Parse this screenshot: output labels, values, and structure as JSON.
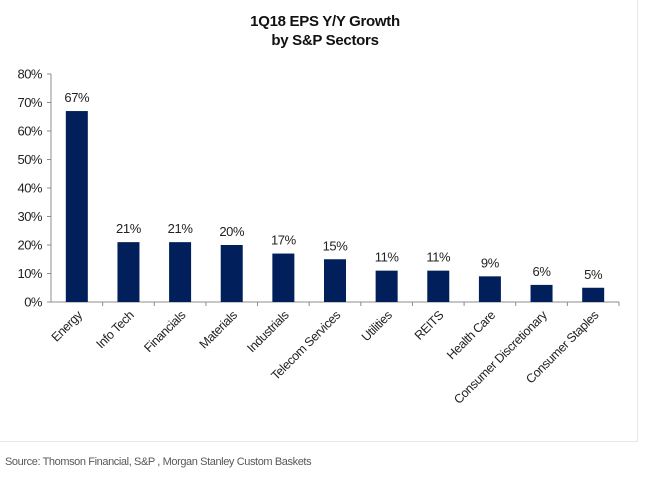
{
  "chart_data": {
    "type": "bar",
    "title": "1Q18 EPS Y/Y Growth",
    "subtitle": "by S&P Sectors",
    "xlabel": "",
    "ylabel": "",
    "categories": [
      "Energy",
      "Info Tech",
      "Financials",
      "Materials",
      "Industrials",
      "Telecom Services",
      "Utilities",
      "REITS",
      "Health Care",
      "Consumer Discretionary",
      "Consumer Staples"
    ],
    "values": [
      67,
      21,
      21,
      20,
      17,
      15,
      11,
      11,
      9,
      6,
      5
    ],
    "data_labels": [
      "67%",
      "21%",
      "21%",
      "20%",
      "17%",
      "15%",
      "11%",
      "11%",
      "9%",
      "6%",
      "5%"
    ],
    "ylim": [
      0,
      80
    ],
    "yticks": [
      0,
      10,
      20,
      30,
      40,
      50,
      60,
      70,
      80
    ],
    "ytick_labels": [
      "0%",
      "10%",
      "20%",
      "30%",
      "40%",
      "50%",
      "60%",
      "70%",
      "80%"
    ],
    "grid": false,
    "legend": "none",
    "bar_color": "#001f5b"
  },
  "source": "Source: Thomson Financial, S&P , Morgan Stanley Custom Baskets"
}
